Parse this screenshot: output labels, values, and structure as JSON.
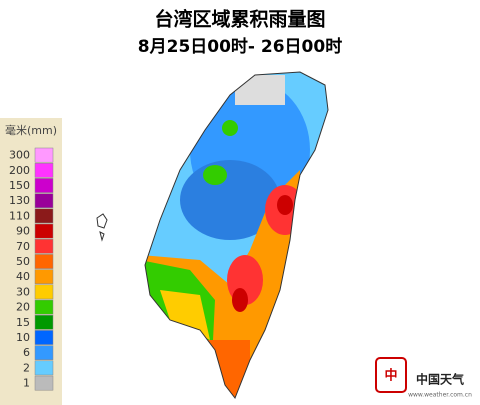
{
  "title": "台湾区域累积雨量图",
  "subtitle": "8月25日00时- 26日00时",
  "legend": {
    "unit": "毫米(mm)",
    "items": [
      {
        "value": 300,
        "color": "#ff99ff"
      },
      {
        "value": 200,
        "color": "#ff33ff"
      },
      {
        "value": 150,
        "color": "#cc00cc"
      },
      {
        "value": 130,
        "color": "#990099"
      },
      {
        "value": 110,
        "color": "#8b1a1a"
      },
      {
        "value": 90,
        "color": "#cc0000"
      },
      {
        "value": 70,
        "color": "#ff3333"
      },
      {
        "value": 50,
        "color": "#ff6600"
      },
      {
        "value": 40,
        "color": "#ff9900"
      },
      {
        "value": 30,
        "color": "#ffcc00"
      },
      {
        "value": 20,
        "color": "#33cc00"
      },
      {
        "value": 15,
        "color": "#009900"
      },
      {
        "value": 10,
        "color": "#0066ff"
      },
      {
        "value": 6,
        "color": "#3399ff"
      },
      {
        "value": 2,
        "color": "#66ccff"
      },
      {
        "value": 1,
        "color": "#bbbbbb"
      }
    ]
  },
  "logo": {
    "name": "中国天气",
    "url": "www.weather.com.cn"
  }
}
